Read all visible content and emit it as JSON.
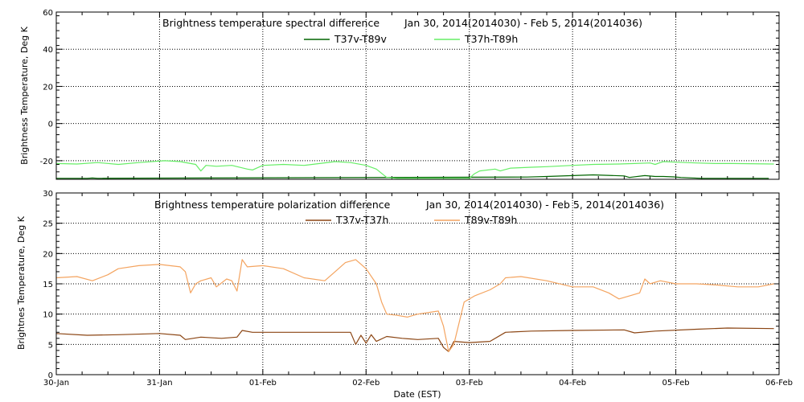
{
  "chart_data": [
    {
      "type": "line",
      "title_left": "Brightness temperature spectral difference",
      "title_right": "Jan 30, 2014(2014030) - Feb  5, 2014(2014036)",
      "ylabel": "Brightness Temperature, Deg K",
      "xlim": [
        "2014-01-30",
        "2014-02-06"
      ],
      "ylim": [
        -30,
        60
      ],
      "y_ticks": [
        "-20",
        "0",
        "20",
        "40",
        "60"
      ],
      "grid": true,
      "legend_position": "top-center",
      "series": [
        {
          "name": "T37v-T89v",
          "color": "#006400",
          "points": [
            [
              0.0,
              -29.5
            ],
            [
              0.3,
              -29.5
            ],
            [
              0.35,
              -29.3
            ],
            [
              0.4,
              -29.5
            ],
            [
              4.56,
              -28.8
            ],
            [
              4.75,
              -28.5
            ],
            [
              5.2,
              -27.6
            ],
            [
              5.5,
              -28.2
            ],
            [
              5.55,
              -29.0
            ],
            [
              5.7,
              -28.0
            ],
            [
              5.8,
              -28.5
            ],
            [
              5.88,
              -28.5
            ],
            [
              5.98,
              -28.7
            ],
            [
              6.05,
              -29.0
            ],
            [
              6.25,
              -29.5
            ],
            [
              6.5,
              -29.5
            ],
            [
              6.75,
              -29.5
            ],
            [
              6.9,
              -29.5
            ]
          ]
        },
        {
          "name": "T37h-T89h",
          "color": "#66ee66",
          "points": [
            [
              0.0,
              -21.5
            ],
            [
              0.2,
              -21.8
            ],
            [
              0.4,
              -21.0
            ],
            [
              0.6,
              -22.0
            ],
            [
              0.8,
              -21.0
            ],
            [
              1.05,
              -20.0
            ],
            [
              1.2,
              -20.5
            ],
            [
              1.35,
              -22.0
            ],
            [
              1.4,
              -25.5
            ],
            [
              1.45,
              -22.5
            ],
            [
              1.55,
              -23.0
            ],
            [
              1.7,
              -22.5
            ],
            [
              1.85,
              -24.5
            ],
            [
              1.9,
              -25.0
            ],
            [
              2.0,
              -22.5
            ],
            [
              2.2,
              -22.0
            ],
            [
              2.4,
              -22.5
            ],
            [
              2.55,
              -21.5
            ],
            [
              2.7,
              -20.5
            ],
            [
              2.85,
              -21.0
            ],
            [
              3.0,
              -22.5
            ],
            [
              3.1,
              -24.5
            ],
            [
              3.2,
              -29.0
            ],
            [
              3.3,
              -29.5
            ],
            [
              3.45,
              -29.5
            ],
            [
              3.6,
              -29.5
            ],
            [
              4.0,
              -29.5
            ],
            [
              4.05,
              -27.0
            ],
            [
              4.1,
              -25.5
            ],
            [
              4.25,
              -24.5
            ],
            [
              4.3,
              -25.5
            ],
            [
              4.4,
              -24.0
            ],
            [
              4.6,
              -23.5
            ],
            [
              4.75,
              -23.2
            ],
            [
              5.0,
              -22.5
            ],
            [
              5.2,
              -22.0
            ],
            [
              5.45,
              -21.8
            ],
            [
              5.6,
              -21.5
            ],
            [
              5.75,
              -21.2
            ],
            [
              5.8,
              -22.0
            ],
            [
              5.85,
              -21.0
            ],
            [
              5.88,
              -20.5
            ],
            [
              6.0,
              -20.8
            ],
            [
              6.2,
              -21.2
            ],
            [
              6.4,
              -21.5
            ],
            [
              6.55,
              -21.5
            ],
            [
              6.95,
              -21.8
            ]
          ]
        }
      ]
    },
    {
      "type": "line",
      "title_left": "Brightness temperature polarization difference",
      "title_right": "Jan 30, 2014(2014030) - Feb  5, 2014(2014036)",
      "xlabel": "Date (EST)",
      "ylabel": "Brightnes Temperature, Deg K",
      "xlim": [
        "2014-01-30",
        "2014-02-06"
      ],
      "x_ticks": [
        "30-Jan",
        "31-Jan",
        "01-Feb",
        "02-Feb",
        "03-Feb",
        "04-Feb",
        "05-Feb",
        "06-Feb"
      ],
      "ylim": [
        0,
        30
      ],
      "y_ticks": [
        "0",
        "5",
        "10",
        "15",
        "20",
        "25",
        "30"
      ],
      "grid": true,
      "legend_position": "top-center",
      "series": [
        {
          "name": "T37v-T37h",
          "color": "#8b4513",
          "points": [
            [
              0.0,
              6.8
            ],
            [
              0.3,
              6.5
            ],
            [
              0.6,
              6.6
            ],
            [
              1.0,
              6.8
            ],
            [
              1.2,
              6.5
            ],
            [
              1.25,
              5.8
            ],
            [
              1.4,
              6.2
            ],
            [
              1.6,
              6.0
            ],
            [
              1.75,
              6.2
            ],
            [
              1.8,
              7.3
            ],
            [
              1.9,
              7.0
            ],
            [
              2.2,
              7.0
            ],
            [
              2.6,
              7.0
            ],
            [
              2.85,
              7.0
            ],
            [
              2.9,
              5.0
            ],
            [
              2.95,
              6.5
            ],
            [
              3.0,
              5.2
            ],
            [
              3.05,
              6.6
            ],
            [
              3.1,
              5.5
            ],
            [
              3.2,
              6.3
            ],
            [
              3.35,
              6.0
            ],
            [
              3.5,
              5.8
            ],
            [
              3.7,
              6.0
            ],
            [
              3.75,
              4.5
            ],
            [
              3.8,
              3.8
            ],
            [
              3.85,
              5.5
            ],
            [
              4.0,
              5.3
            ],
            [
              4.2,
              5.5
            ],
            [
              4.35,
              7.0
            ],
            [
              4.6,
              7.2
            ],
            [
              5.0,
              7.3
            ],
            [
              5.5,
              7.4
            ],
            [
              5.6,
              6.9
            ],
            [
              5.8,
              7.2
            ],
            [
              6.2,
              7.5
            ],
            [
              6.5,
              7.7
            ],
            [
              6.95,
              7.6
            ]
          ]
        },
        {
          "name": "T89v-T89h",
          "color": "#f4a460",
          "points": [
            [
              0.0,
              16.0
            ],
            [
              0.2,
              16.2
            ],
            [
              0.35,
              15.5
            ],
            [
              0.5,
              16.5
            ],
            [
              0.6,
              17.5
            ],
            [
              0.8,
              18.0
            ],
            [
              1.0,
              18.2
            ],
            [
              1.2,
              17.8
            ],
            [
              1.25,
              17.0
            ],
            [
              1.3,
              13.5
            ],
            [
              1.35,
              15.0
            ],
            [
              1.4,
              15.5
            ],
            [
              1.5,
              16.0
            ],
            [
              1.55,
              14.5
            ],
            [
              1.65,
              15.8
            ],
            [
              1.7,
              15.5
            ],
            [
              1.75,
              13.8
            ],
            [
              1.8,
              19.0
            ],
            [
              1.85,
              17.8
            ],
            [
              2.0,
              18.0
            ],
            [
              2.2,
              17.5
            ],
            [
              2.4,
              16.0
            ],
            [
              2.6,
              15.5
            ],
            [
              2.7,
              17.0
            ],
            [
              2.8,
              18.5
            ],
            [
              2.9,
              19.0
            ],
            [
              3.0,
              17.5
            ],
            [
              3.1,
              15.0
            ],
            [
              3.15,
              12.0
            ],
            [
              3.2,
              10.0
            ],
            [
              3.3,
              9.8
            ],
            [
              3.4,
              9.5
            ],
            [
              3.5,
              10.0
            ],
            [
              3.7,
              10.5
            ],
            [
              3.75,
              8.0
            ],
            [
              3.8,
              3.8
            ],
            [
              3.85,
              5.0
            ],
            [
              3.9,
              8.5
            ],
            [
              3.95,
              12.0
            ],
            [
              4.05,
              13.0
            ],
            [
              4.2,
              14.0
            ],
            [
              4.3,
              15.0
            ],
            [
              4.35,
              16.0
            ],
            [
              4.5,
              16.2
            ],
            [
              4.75,
              15.5
            ],
            [
              5.0,
              14.5
            ],
            [
              5.2,
              14.5
            ],
            [
              5.35,
              13.5
            ],
            [
              5.45,
              12.5
            ],
            [
              5.55,
              13.0
            ],
            [
              5.65,
              13.5
            ],
            [
              5.7,
              15.8
            ],
            [
              5.75,
              15.0
            ],
            [
              5.85,
              15.5
            ],
            [
              6.0,
              15.0
            ],
            [
              6.2,
              15.0
            ],
            [
              6.4,
              14.8
            ],
            [
              6.6,
              14.5
            ],
            [
              6.8,
              14.5
            ],
            [
              6.95,
              15.0
            ]
          ]
        }
      ]
    }
  ]
}
